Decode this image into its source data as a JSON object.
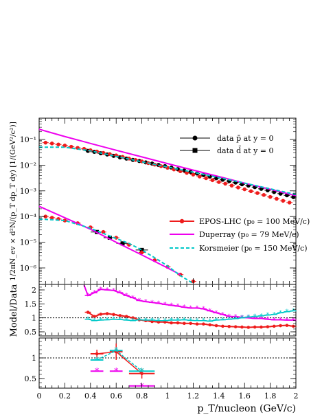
{
  "chart_data": [
    {
      "type": "scatter",
      "panel": "main",
      "ylabel": "1/2πN_ev × d²N/(p_T dp_T dy)  [1/(GeV²/c²)]",
      "yscale": "log",
      "ylim": [
        3e-07,
        0.3
      ],
      "xlim": [
        0,
        2
      ],
      "y_tick_labels": [
        "10⁻⁶",
        "10⁻⁵",
        "10⁻⁴",
        "10⁻³",
        "10⁻²",
        "10⁻¹"
      ],
      "legend": [
        {
          "label": "data p̄ at y = 0",
          "marker": "circle",
          "color": "#000000"
        },
        {
          "label": "data d̄ at y = 0",
          "marker": "square",
          "color": "#000000"
        },
        {
          "label": "EPOS-LHC (p₀ = 100 MeV/c)",
          "style": "line-dot",
          "color": "#ee1c1c"
        },
        {
          "label": "Duperray (p₀ = 79 MeV/c)",
          "style": "line",
          "color": "#ee00ee"
        },
        {
          "label": "Korsmeier (p₀ = 150 MeV/c)",
          "style": "dashed",
          "color": "#00c8c8"
        }
      ],
      "series": [
        {
          "name": "data p̄ at y = 0",
          "color": "#000000",
          "marker": "circle",
          "x": [
            0.38,
            0.43,
            0.48,
            0.53,
            0.58,
            0.63,
            0.68,
            0.73,
            0.78,
            0.83,
            0.88,
            0.93,
            0.98,
            1.03,
            1.08,
            1.13,
            1.18,
            1.23,
            1.28,
            1.33,
            1.38,
            1.43,
            1.48,
            1.53,
            1.58,
            1.63,
            1.68,
            1.73,
            1.78,
            1.83,
            1.88,
            1.93,
            1.98
          ],
          "y": [
            0.036,
            0.033,
            0.029,
            0.026,
            0.023,
            0.02,
            0.018,
            0.016,
            0.0145,
            0.0128,
            0.0115,
            0.0102,
            0.0091,
            0.008,
            0.007,
            0.0062,
            0.0054,
            0.0047,
            0.0041,
            0.0036,
            0.0031,
            0.0027,
            0.0024,
            0.0021,
            0.0018,
            0.0016,
            0.0014,
            0.0012,
            0.00105,
            0.0009,
            0.00078,
            0.00067,
            0.00057
          ]
        },
        {
          "name": "data d̄ at y = 0",
          "color": "#000000",
          "marker": "square",
          "x": [
            0.45,
            0.55,
            0.65,
            0.8
          ],
          "y": [
            2.5e-05,
            1.5e-05,
            9e-06,
            5e-06
          ]
        },
        {
          "name": "EPOS-LHC p̄",
          "color": "#ee1c1c",
          "marker": "circle",
          "x": [
            0.05,
            0.1,
            0.15,
            0.2,
            0.25,
            0.3,
            0.35,
            0.4,
            0.45,
            0.5,
            0.55,
            0.6,
            0.65,
            0.7,
            0.75,
            0.8,
            0.85,
            0.9,
            0.95,
            1.0,
            1.05,
            1.1,
            1.15,
            1.2,
            1.25,
            1.3,
            1.35,
            1.4,
            1.45,
            1.5,
            1.55,
            1.6,
            1.65,
            1.7,
            1.75,
            1.8,
            1.85,
            1.9,
            1.95
          ],
          "y": [
            0.075,
            0.07,
            0.064,
            0.058,
            0.052,
            0.047,
            0.043,
            0.038,
            0.034,
            0.03,
            0.027,
            0.024,
            0.021,
            0.018,
            0.016,
            0.014,
            0.012,
            0.0105,
            0.0091,
            0.0079,
            0.0068,
            0.0058,
            0.005,
            0.0043,
            0.0036,
            0.0031,
            0.0026,
            0.0022,
            0.0019,
            0.0016,
            0.00135,
            0.00115,
            0.00097,
            0.00082,
            0.00069,
            0.00058,
            0.00049,
            0.00041,
            0.00035
          ]
        },
        {
          "name": "EPOS-LHC d̄",
          "color": "#ee1c1c",
          "marker": "circle",
          "x": [
            0.05,
            0.1,
            0.15,
            0.2,
            0.3,
            0.4,
            0.5,
            0.6,
            0.7,
            0.8,
            0.9,
            1.0,
            1.1,
            1.2
          ],
          "y": [
            0.0001,
            9e-05,
            8e-05,
            7e-05,
            5.5e-05,
            3.8e-05,
            2.5e-05,
            1.5e-05,
            8e-06,
            4e-06,
            2e-06,
            1.1e-06,
            5.5e-07,
            3e-07
          ]
        },
        {
          "name": "Duperray p̄",
          "color": "#ee00ee",
          "style": "line",
          "x": [
            0,
            0.2,
            0.4,
            0.6,
            0.8,
            1.0,
            1.2,
            1.4,
            1.6,
            1.8,
            2.0
          ],
          "y": [
            0.25,
            0.13,
            0.07,
            0.038,
            0.021,
            0.0115,
            0.0064,
            0.0036,
            0.002,
            0.00115,
            0.00065
          ]
        },
        {
          "name": "Duperray d̄",
          "color": "#ee00ee",
          "style": "line",
          "x": [
            0,
            0.2,
            0.4,
            0.6,
            0.8,
            1.0,
            1.1
          ],
          "y": [
            0.00025,
            9e-05,
            3.2e-05,
            1e-05,
            3.2e-06,
            1e-06,
            5.5e-07
          ]
        },
        {
          "name": "Korsmeier p̄",
          "color": "#00c8c8",
          "style": "dashed",
          "x": [
            0,
            0.2,
            0.4,
            0.6,
            0.8,
            1.0,
            1.2,
            1.4,
            1.6,
            1.8,
            2.0
          ],
          "y": [
            0.05,
            0.05,
            0.036,
            0.022,
            0.0135,
            0.0085,
            0.0053,
            0.0033,
            0.002,
            0.0012,
            0.00072
          ]
        },
        {
          "name": "Korsmeier d̄",
          "color": "#00c8c8",
          "style": "dashed",
          "x": [
            0,
            0.2,
            0.4,
            0.5,
            0.6,
            0.7,
            0.8,
            0.85,
            0.9,
            1.0,
            1.1,
            1.2
          ],
          "y": [
            8e-05,
            7e-05,
            3.5e-05,
            2.2e-05,
            1.4e-05,
            9e-06,
            5e-06,
            3.5e-06,
            2.5e-06,
            1.2e-06,
            5e-07,
            2.5e-07
          ]
        }
      ]
    },
    {
      "type": "line",
      "panel": "ratio-pbar",
      "ylabel": "Model/Data",
      "ylim": [
        0.35,
        2.25
      ],
      "xlim": [
        0,
        2
      ],
      "reference_line": 1,
      "y_tick_labels": [
        "0.5",
        "1",
        "1.5",
        "2"
      ],
      "series": [
        {
          "name": "EPOS-LHC",
          "color": "#ee1c1c",
          "x": [
            0.38,
            0.43,
            0.48,
            0.53,
            0.58,
            0.63,
            0.68,
            0.73,
            0.78,
            0.83,
            0.88,
            0.93,
            0.98,
            1.03,
            1.08,
            1.13,
            1.18,
            1.23,
            1.28,
            1.33,
            1.38,
            1.43,
            1.48,
            1.53,
            1.58,
            1.63,
            1.68,
            1.73,
            1.78,
            1.83,
            1.88,
            1.93,
            1.98
          ],
          "y": [
            1.2,
            1.05,
            1.13,
            1.15,
            1.12,
            1.08,
            1.05,
            1.0,
            0.93,
            0.9,
            0.87,
            0.85,
            0.85,
            0.82,
            0.82,
            0.8,
            0.8,
            0.78,
            0.78,
            0.75,
            0.72,
            0.7,
            0.69,
            0.68,
            0.67,
            0.66,
            0.67,
            0.67,
            0.68,
            0.7,
            0.72,
            0.73,
            0.7
          ]
        },
        {
          "name": "Duperray",
          "color": "#ee00ee",
          "x": [
            0.35,
            0.38,
            0.43,
            0.48,
            0.53,
            0.58,
            0.63,
            0.68,
            0.73,
            0.78,
            0.83,
            0.88,
            0.93,
            0.98,
            1.03,
            1.08,
            1.13,
            1.18,
            1.23,
            1.28,
            1.33,
            1.38,
            1.43,
            1.48,
            1.53,
            1.58,
            1.63,
            1.68,
            1.73,
            1.78,
            1.83,
            1.88,
            1.93,
            1.98
          ],
          "y": [
            2.3,
            1.8,
            1.9,
            2.02,
            2.0,
            1.98,
            1.9,
            1.8,
            1.72,
            1.62,
            1.58,
            1.55,
            1.52,
            1.48,
            1.45,
            1.42,
            1.38,
            1.35,
            1.35,
            1.32,
            1.25,
            1.18,
            1.12,
            1.05,
            1.04,
            1.02,
            1.0,
            0.98,
            0.98,
            0.95,
            0.93,
            0.93,
            0.92,
            0.92
          ]
        },
        {
          "name": "Korsmeier",
          "color": "#00c8c8",
          "x": [
            0.38,
            0.43,
            0.48,
            0.53,
            0.58,
            0.63,
            0.68,
            0.73,
            0.78,
            0.83,
            0.88,
            0.93,
            0.98,
            1.03,
            1.08,
            1.13,
            1.18,
            1.23,
            1.28,
            1.33,
            1.38,
            1.43,
            1.48,
            1.53,
            1.58,
            1.63,
            1.68,
            1.73,
            1.78,
            1.83,
            1.88,
            1.93,
            1.98
          ],
          "y": [
            0.95,
            0.9,
            0.92,
            0.93,
            0.95,
            0.94,
            0.92,
            0.9,
            0.93,
            0.92,
            0.92,
            0.9,
            0.9,
            0.92,
            0.92,
            0.93,
            0.91,
            0.9,
            0.9,
            0.88,
            0.92,
            0.93,
            0.95,
            0.97,
            1.0,
            1.03,
            1.05,
            1.07,
            1.1,
            1.12,
            1.18,
            1.22,
            1.25
          ]
        }
      ]
    },
    {
      "type": "line",
      "panel": "ratio-dbar",
      "ylim": [
        0.25,
        1.5
      ],
      "xlim": [
        0,
        2
      ],
      "reference_line": 1,
      "xlabel": "p_T/nucleon (GeV/c)",
      "x_tick_labels": [
        "0",
        "0.2",
        "0.4",
        "0.6",
        "0.8",
        "1",
        "1.2",
        "1.4",
        "1.6",
        "1.8",
        "2"
      ],
      "y_tick_labels": [
        "0.5",
        "1"
      ],
      "series": [
        {
          "name": "EPOS-LHC",
          "color": "#ee1c1c",
          "x": [
            0.45,
            0.6,
            0.8
          ],
          "y": [
            1.1,
            1.15,
            0.62
          ],
          "yerr": [
            0.1,
            0.2,
            0.12
          ],
          "xerr": [
            0.05,
            0.05,
            0.1
          ]
        },
        {
          "name": "Duperray",
          "color": "#ee00ee",
          "x": [
            0.45,
            0.6,
            0.8
          ],
          "y": [
            0.68,
            0.68,
            0.32
          ],
          "xerr": [
            0.05,
            0.05,
            0.1
          ]
        },
        {
          "name": "Korsmeier",
          "color": "#00c8c8",
          "x": [
            0.45,
            0.6,
            0.8
          ],
          "y": [
            0.95,
            1.18,
            0.68
          ],
          "xerr": [
            0.05,
            0.05,
            0.1
          ]
        }
      ]
    }
  ]
}
